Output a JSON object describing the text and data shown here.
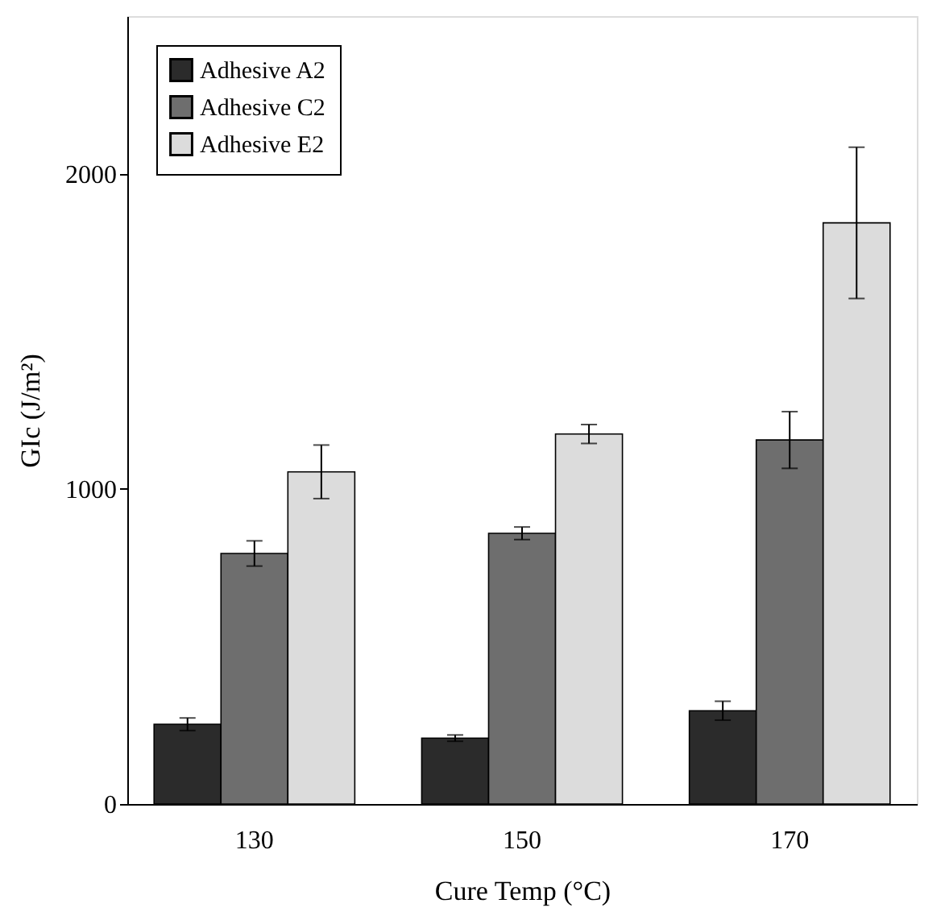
{
  "chart_data": {
    "type": "bar",
    "xlabel": "Cure Temp (°C)",
    "ylabel": "GIc (J/m²)",
    "categories": [
      "130",
      "150",
      "170"
    ],
    "series": [
      {
        "name": "Adhesive A2",
        "color": "#2b2b2b",
        "values": [
          253,
          209,
          296
        ],
        "errors": [
          20,
          10,
          30
        ]
      },
      {
        "name": "Adhesive C2",
        "color": "#6e6e6e",
        "values": [
          795,
          859,
          1155
        ],
        "errors": [
          40,
          20,
          90
        ]
      },
      {
        "name": "Adhesive E2",
        "color": "#dcdcdc",
        "values": [
          1054,
          1174,
          1844
        ],
        "errors": [
          85,
          30,
          240
        ]
      }
    ],
    "ylim": [
      0,
      2500
    ],
    "yticks": [
      0,
      1000,
      2000
    ],
    "grid": false,
    "legend": "top left"
  }
}
